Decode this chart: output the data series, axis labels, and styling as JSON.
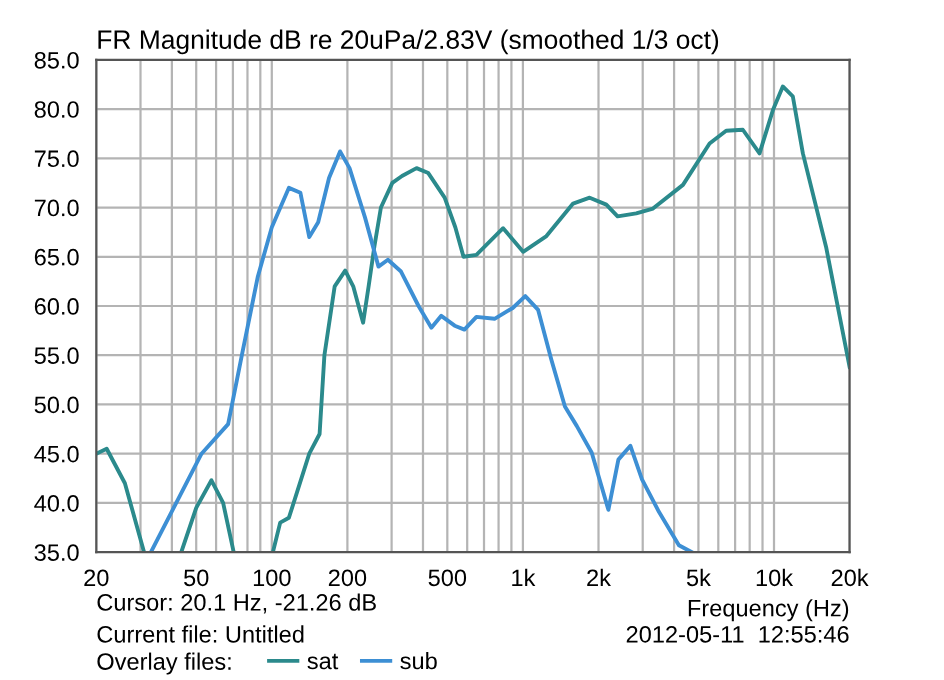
{
  "chart_data": {
    "type": "line",
    "title": "FR Magnitude dB re 20uPa/2.83V (smoothed 1/3 oct)",
    "xlabel": "Frequency (Hz)",
    "log": "x",
    "xlim": [
      20,
      20000
    ],
    "ylim": [
      35,
      85
    ],
    "xticks": [
      20,
      50,
      100,
      200,
      500,
      {
        "value": 1000,
        "label": "1k"
      },
      {
        "value": 2000,
        "label": "2k"
      },
      {
        "value": 5000,
        "label": "5k"
      },
      {
        "value": 10000,
        "label": "10k"
      },
      {
        "value": 20000,
        "label": "20k"
      }
    ],
    "yticks": [
      {
        "value": 35,
        "label": "35.0"
      },
      {
        "value": 40,
        "label": "40.0"
      },
      {
        "value": 45,
        "label": "45.0"
      },
      {
        "value": 50,
        "label": "50.0"
      },
      {
        "value": 55,
        "label": "55.0"
      },
      {
        "value": 60,
        "label": "60.0"
      },
      {
        "value": 65,
        "label": "65.0"
      },
      {
        "value": 70,
        "label": "70.0"
      },
      {
        "value": 75,
        "label": "75.0"
      },
      {
        "value": 80,
        "label": "80.0"
      },
      {
        "value": 85,
        "label": "85.0"
      }
    ],
    "grid": true,
    "legend": "bottom",
    "annotations": [
      "Cursor: 20.1 Hz, -21.26 dB",
      "Current file: Untitled",
      "2012-05-11  12:55:46",
      "Overlay files:"
    ],
    "series": [
      {
        "name": "sat",
        "color": "#2b8a8c",
        "x": [
          20,
          22,
          26,
          31,
          37,
          43.6,
          50,
          57.5,
          64,
          70.5,
          85,
          101,
          108,
          117,
          141,
          155,
          162,
          178,
          196,
          211,
          231,
          243,
          256,
          272,
          302,
          330,
          377,
          420,
          488,
          538,
          580,
          653,
          834,
          1002,
          1241,
          1584,
          1845,
          2149,
          2383,
          2827,
          3296,
          4339,
          5538,
          6448,
          7515,
          8757,
          9901,
          10840,
          11880,
          13030,
          16120,
          20000
        ],
        "values": [
          45,
          45.5,
          42,
          35,
          null,
          35,
          39.5,
          42.3,
          40,
          35,
          null,
          35,
          38,
          38.5,
          45,
          47,
          55,
          62,
          63.6,
          62,
          58.3,
          62,
          66,
          70,
          72.5,
          73.2,
          74,
          73.5,
          71,
          68,
          65,
          65.2,
          67.9,
          65.5,
          67.1,
          70.4,
          71.0,
          70.3,
          69.1,
          69.4,
          69.9,
          72.3,
          76.5,
          77.8,
          77.9,
          75.5,
          79.9,
          82.3,
          81.3,
          75.5,
          66.0,
          53.8
        ]
      },
      {
        "name": "sub",
        "color": "#3d8fd4",
        "x": [
          33,
          52.5,
          67,
          76,
          88,
          100,
          117,
          130,
          141,
          153,
          169,
          187,
          204,
          235,
          266,
          290,
          327,
          384,
          432,
          473,
          535,
          585,
          653,
          771,
          911,
          1022,
          1150,
          1300,
          1470,
          1640,
          1880,
          2190,
          2400,
          2680,
          2980,
          3480,
          4180,
          4700
        ],
        "values": [
          35,
          45,
          48,
          55,
          63,
          68,
          72,
          71.5,
          67,
          68.5,
          73,
          75.7,
          74,
          69,
          64,
          64.7,
          63.5,
          60,
          57.8,
          59,
          58,
          57.6,
          58.9,
          58.7,
          59.8,
          61.0,
          59.6,
          54.5,
          49.8,
          47.8,
          45.1,
          39.3,
          44.4,
          45.8,
          42.4,
          39.1,
          35.7,
          35
        ]
      }
    ]
  }
}
